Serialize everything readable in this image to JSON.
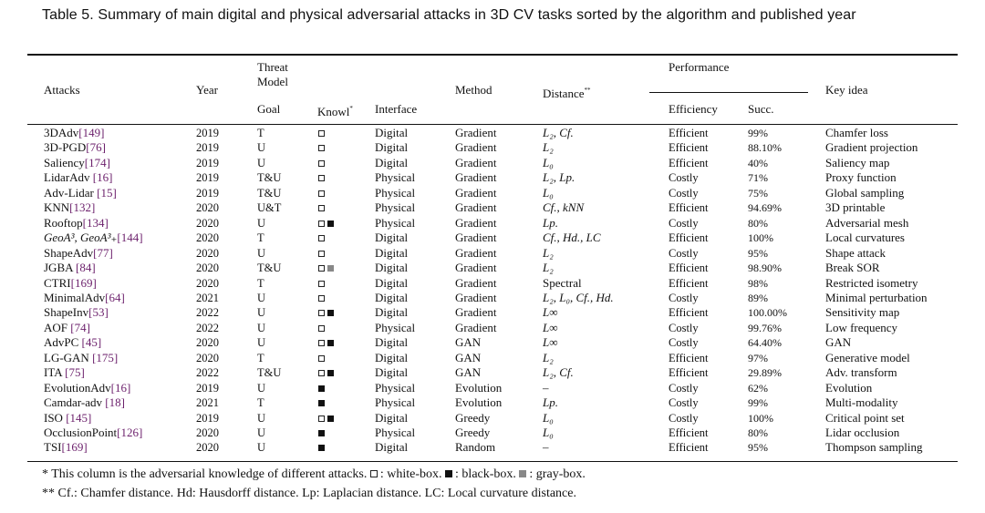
{
  "caption": "Table 5.  Summary of main digital and physical adversarial attacks in 3D CV tasks sorted by the algorithm and published year",
  "headers": {
    "attacks": "Attacks",
    "year": "Year",
    "threat_model_line1": "Threat",
    "threat_model_line2": "Model",
    "goal": "Goal",
    "knowl": "Knowl",
    "knowl_mark": "*",
    "interface": "Interface",
    "method": "Method",
    "distance": "Distance",
    "distance_mark": "**",
    "performance": "Performance",
    "efficiency": "Efficiency",
    "succ": "Succ.",
    "key_idea": "Key idea"
  },
  "rows": [
    {
      "name": "3DAdv",
      "ref": "[149]",
      "year": "2019",
      "goal": "T",
      "knowl": [
        "white"
      ],
      "interface": "Digital",
      "method": "Gradient",
      "distance": "L₂, Cf.",
      "efficiency": "Efficient",
      "succ": "99%",
      "key_idea": "Chamfer loss"
    },
    {
      "name": "3D-PGD",
      "ref": "[76]",
      "year": "2019",
      "goal": "U",
      "knowl": [
        "white"
      ],
      "interface": "Digital",
      "method": "Gradient",
      "distance": "L₂",
      "efficiency": "Efficient",
      "succ": "88.10%",
      "key_idea": "Gradient projection"
    },
    {
      "name": "Saliency",
      "ref": "[174]",
      "year": "2019",
      "goal": "U",
      "knowl": [
        "white"
      ],
      "interface": "Digital",
      "method": "Gradient",
      "distance": "L₀",
      "efficiency": "Efficient",
      "succ": "40%",
      "key_idea": "Saliency map"
    },
    {
      "name": "LidarAdv ",
      "ref": "[16]",
      "year": "2019",
      "goal": "T&U",
      "knowl": [
        "white"
      ],
      "interface": "Physical",
      "method": "Gradient",
      "distance": "L₂, Lp.",
      "efficiency": "Costly",
      "succ": "71%",
      "key_idea": "Proxy function"
    },
    {
      "name": "Adv-Lidar ",
      "ref": "[15]",
      "year": "2019",
      "goal": "T&U",
      "knowl": [
        "white"
      ],
      "interface": "Physical",
      "method": "Gradient",
      "distance": "L₀",
      "efficiency": "Costly",
      "succ": "75%",
      "key_idea": "Global sampling"
    },
    {
      "name": "KNN",
      "ref": "[132]",
      "year": "2020",
      "goal": "U&T",
      "knowl": [
        "white"
      ],
      "interface": "Physical",
      "method": "Gradient",
      "distance": "Cf., kNN",
      "efficiency": "Efficient",
      "succ": "94.69%",
      "key_idea": "3D printable"
    },
    {
      "name": "Rooftop",
      "ref": "[134]",
      "year": "2020",
      "goal": "U",
      "knowl": [
        "white",
        "black"
      ],
      "interface": "Physical",
      "method": "Gradient",
      "distance": "Lp.",
      "efficiency": "Costly",
      "succ": "80%",
      "key_idea": "Adversarial mesh"
    },
    {
      "name": "GeoA³, GeoA³₊",
      "ref": "[144]",
      "year": "2020",
      "goal": "T",
      "knowl": [
        "white"
      ],
      "interface": "Digital",
      "method": "Gradient",
      "distance": "Cf., Hd., LC",
      "efficiency": "Efficient",
      "succ": "100%",
      "key_idea": "Local curvatures",
      "italic_name": true
    },
    {
      "name": "ShapeAdv",
      "ref": "[77]",
      "year": "2020",
      "goal": "U",
      "knowl": [
        "white"
      ],
      "interface": "Digital",
      "method": "Gradient",
      "distance": "L₂",
      "efficiency": "Costly",
      "succ": "95%",
      "key_idea": "Shape attack"
    },
    {
      "name": "JGBA ",
      "ref": "[84]",
      "year": "2020",
      "goal": "T&U",
      "knowl": [
        "white",
        "gray"
      ],
      "interface": "Digital",
      "method": "Gradient",
      "distance": "L₂",
      "efficiency": "Efficient",
      "succ": "98.90%",
      "key_idea": "Break SOR"
    },
    {
      "name": "CTRI",
      "ref": "[169]",
      "year": "2020",
      "goal": "T",
      "knowl": [
        "white"
      ],
      "interface": "Digital",
      "method": "Gradient",
      "distance": "Spectral",
      "efficiency": "Efficient",
      "succ": "98%",
      "key_idea": "Restricted isometry",
      "upright_distance": true
    },
    {
      "name": "MinimalAdv",
      "ref": "[64]",
      "year": "2021",
      "goal": "U",
      "knowl": [
        "white"
      ],
      "interface": "Digital",
      "method": "Gradient",
      "distance": "L₂, L₀, Cf., Hd.",
      "efficiency": "Costly",
      "succ": "89%",
      "key_idea": "Minimal perturbation"
    },
    {
      "name": "ShapeInv",
      "ref": "[53]",
      "year": "2022",
      "goal": "U",
      "knowl": [
        "white",
        "black"
      ],
      "interface": "Digital",
      "method": "Gradient",
      "distance": "L∞",
      "efficiency": "Efficient",
      "succ": "100.00%",
      "key_idea": "Sensitivity map"
    },
    {
      "name": "AOF ",
      "ref": "[74]",
      "year": "2022",
      "goal": "U",
      "knowl": [
        "white"
      ],
      "interface": "Physical",
      "method": "Gradient",
      "distance": "L∞",
      "efficiency": "Costly",
      "succ": "99.76%",
      "key_idea": "Low frequency"
    },
    {
      "name": "AdvPC ",
      "ref": "[45]",
      "year": "2020",
      "goal": "U",
      "knowl": [
        "white",
        "black"
      ],
      "interface": "Digital",
      "method": "GAN",
      "distance": "L∞",
      "efficiency": "Costly",
      "succ": "64.40%",
      "key_idea": "GAN"
    },
    {
      "name": "LG-GAN ",
      "ref": "[175]",
      "year": "2020",
      "goal": "T",
      "knowl": [
        "white"
      ],
      "interface": "Digital",
      "method": "GAN",
      "distance": "L₂",
      "efficiency": "Efficient",
      "succ": "97%",
      "key_idea": "Generative model"
    },
    {
      "name": "ITA ",
      "ref": "[75]",
      "year": "2022",
      "goal": "T&U",
      "knowl": [
        "white",
        "black"
      ],
      "interface": "Digital",
      "method": "GAN",
      "distance": "L₂, Cf.",
      "efficiency": "Efficient",
      "succ": "29.89%",
      "key_idea": "Adv. transform"
    },
    {
      "name": "EvolutionAdv",
      "ref": "[16]",
      "year": "2019",
      "goal": "U",
      "knowl": [
        "black"
      ],
      "interface": "Physical",
      "method": "Evolution",
      "distance": "–",
      "efficiency": "Costly",
      "succ": "62%",
      "key_idea": "Evolution",
      "upright_distance": true
    },
    {
      "name": "Camdar-adv ",
      "ref": "[18]",
      "year": "2021",
      "goal": "T",
      "knowl": [
        "black"
      ],
      "interface": "Physical",
      "method": "Evolution",
      "distance": "Lp.",
      "efficiency": "Costly",
      "succ": "99%",
      "key_idea": "Multi-modality"
    },
    {
      "name": "ISO ",
      "ref": "[145]",
      "year": "2019",
      "goal": "U",
      "knowl": [
        "white",
        "black"
      ],
      "interface": "Digital",
      "method": "Greedy",
      "distance": "L₀",
      "efficiency": "Costly",
      "succ": "100%",
      "key_idea": "Critical point set"
    },
    {
      "name": "OcclusionPoint",
      "ref": "[126]",
      "year": "2020",
      "goal": "U",
      "knowl": [
        "black"
      ],
      "interface": "Physical",
      "method": "Greedy",
      "distance": "L₀",
      "efficiency": "Efficient",
      "succ": "80%",
      "key_idea": "Lidar occlusion"
    },
    {
      "name": "TSI",
      "ref": "[169]",
      "year": "2020",
      "goal": "U",
      "knowl": [
        "black"
      ],
      "interface": "Digital",
      "method": "Random",
      "distance": "–",
      "efficiency": "Efficient",
      "succ": "95%",
      "key_idea": "Thompson sampling",
      "upright_distance": true
    }
  ],
  "notes": {
    "note1_prefix": "* This column is the adversarial knowledge of different attacks.",
    "note1_white": ": white-box.",
    "note1_black": ": black-box.",
    "note1_gray": ": gray-box.",
    "note2": "** Cf.: Chamfer distance. Hd: Hausdorff distance. Lp: Laplacian distance. LC: Local curvature distance."
  }
}
